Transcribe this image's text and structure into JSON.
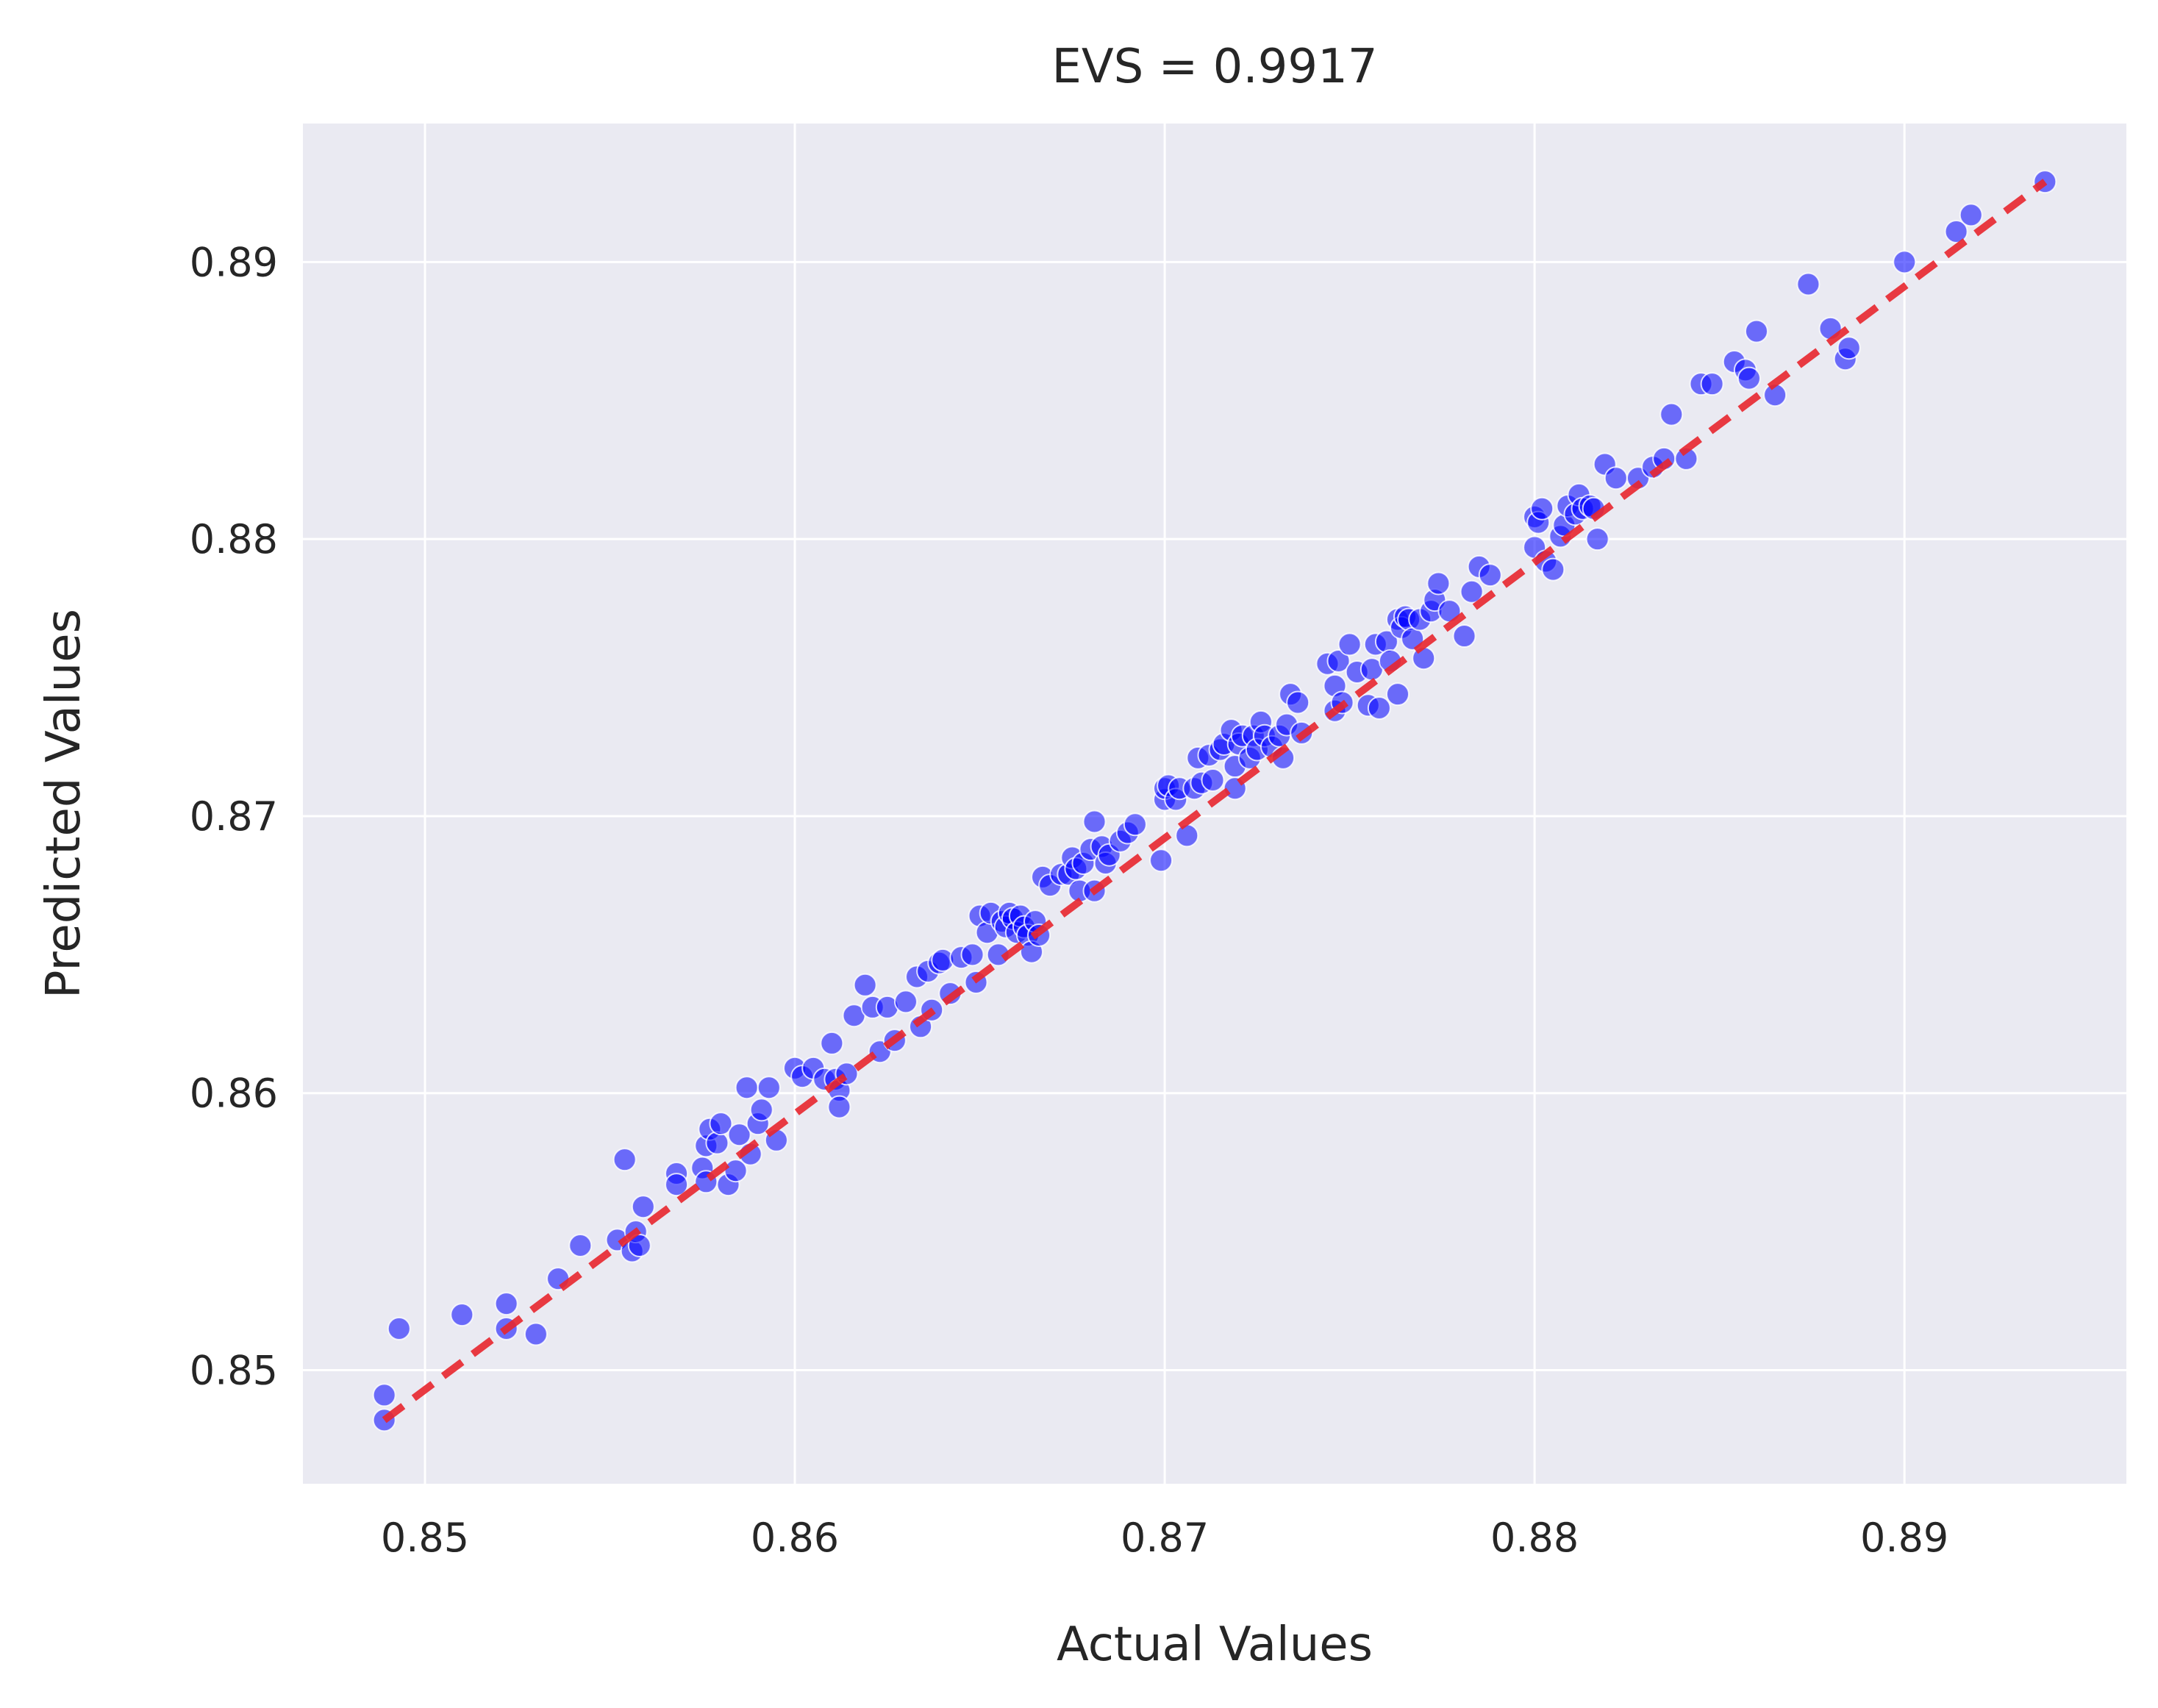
{
  "chart_data": {
    "type": "scatter",
    "title": "EVS = 0.9917",
    "xlabel": "Actual Values",
    "ylabel": "Predicted Values",
    "xlim": [
      0.8467,
      0.896
    ],
    "ylim": [
      0.8459,
      0.895
    ],
    "xticks": [
      0.85,
      0.86,
      0.87,
      0.88,
      0.89
    ],
    "yticks": [
      0.85,
      0.86,
      0.87,
      0.88,
      0.89
    ],
    "xtick_labels": [
      "0.85",
      "0.86",
      "0.87",
      "0.88",
      "0.89"
    ],
    "ytick_labels": [
      "0.85",
      "0.86",
      "0.87",
      "0.88",
      "0.89"
    ],
    "grid": true,
    "legend": "none",
    "colors": {
      "background": "#EAEAF2",
      "grid": "#FFFFFF",
      "points": "#0000FF",
      "reference_line": "#E8262E",
      "text": "#262626"
    },
    "reference_line": {
      "x": [
        0.8489,
        0.8938
      ],
      "y": [
        0.8482,
        0.8929
      ],
      "style": "dashed"
    },
    "series": [
      {
        "points": [
          [
            0.8489,
            0.8482
          ],
          [
            0.8489,
            0.8491
          ],
          [
            0.8493,
            0.8515
          ],
          [
            0.851,
            0.852
          ],
          [
            0.8522,
            0.8524
          ],
          [
            0.8522,
            0.8515
          ],
          [
            0.853,
            0.8513
          ],
          [
            0.8536,
            0.8533
          ],
          [
            0.8542,
            0.8545
          ],
          [
            0.8552,
            0.8547
          ],
          [
            0.8554,
            0.8576
          ],
          [
            0.8556,
            0.8543
          ],
          [
            0.8557,
            0.855
          ],
          [
            0.8558,
            0.8545
          ],
          [
            0.8559,
            0.8559
          ],
          [
            0.8568,
            0.8571
          ],
          [
            0.8568,
            0.8567
          ],
          [
            0.8575,
            0.8573
          ],
          [
            0.8576,
            0.8568
          ],
          [
            0.8576,
            0.8581
          ],
          [
            0.8577,
            0.8587
          ],
          [
            0.8579,
            0.8582
          ],
          [
            0.858,
            0.8589
          ],
          [
            0.8582,
            0.8567
          ],
          [
            0.8584,
            0.8572
          ],
          [
            0.8585,
            0.8585
          ],
          [
            0.8587,
            0.8602
          ],
          [
            0.8588,
            0.8578
          ],
          [
            0.859,
            0.8589
          ],
          [
            0.8591,
            0.8594
          ],
          [
            0.8593,
            0.8602
          ],
          [
            0.8595,
            0.8583
          ],
          [
            0.86,
            0.8609
          ],
          [
            0.8602,
            0.8606
          ],
          [
            0.8605,
            0.8609
          ],
          [
            0.8608,
            0.8605
          ],
          [
            0.861,
            0.8618
          ],
          [
            0.8611,
            0.8605
          ],
          [
            0.8612,
            0.8601
          ],
          [
            0.8612,
            0.8595
          ],
          [
            0.8614,
            0.8607
          ],
          [
            0.8616,
            0.8628
          ],
          [
            0.8619,
            0.8639
          ],
          [
            0.8621,
            0.8631
          ],
          [
            0.8623,
            0.8615
          ],
          [
            0.8625,
            0.8631
          ],
          [
            0.8627,
            0.8619
          ],
          [
            0.863,
            0.8633
          ],
          [
            0.8633,
            0.8642
          ],
          [
            0.8634,
            0.8624
          ],
          [
            0.8636,
            0.8644
          ],
          [
            0.8637,
            0.863
          ],
          [
            0.8639,
            0.8647
          ],
          [
            0.864,
            0.8648
          ],
          [
            0.8642,
            0.8636
          ],
          [
            0.8645,
            0.8649
          ],
          [
            0.8648,
            0.865
          ],
          [
            0.8649,
            0.864
          ],
          [
            0.865,
            0.8664
          ],
          [
            0.8652,
            0.8658
          ],
          [
            0.8653,
            0.8665
          ],
          [
            0.8655,
            0.865
          ],
          [
            0.8656,
            0.8662
          ],
          [
            0.8657,
            0.866
          ],
          [
            0.8658,
            0.8665
          ],
          [
            0.8659,
            0.8663
          ],
          [
            0.866,
            0.8658
          ],
          [
            0.8661,
            0.8664
          ],
          [
            0.8662,
            0.866
          ],
          [
            0.8663,
            0.8657
          ],
          [
            0.8664,
            0.8651
          ],
          [
            0.8665,
            0.8662
          ],
          [
            0.8666,
            0.8657
          ],
          [
            0.8667,
            0.8678
          ],
          [
            0.8669,
            0.8675
          ],
          [
            0.8672,
            0.8679
          ],
          [
            0.8674,
            0.8679
          ],
          [
            0.8675,
            0.8685
          ],
          [
            0.8676,
            0.8681
          ],
          [
            0.8677,
            0.8673
          ],
          [
            0.8678,
            0.8683
          ],
          [
            0.868,
            0.8688
          ],
          [
            0.8681,
            0.8698
          ],
          [
            0.8681,
            0.8673
          ],
          [
            0.8683,
            0.8689
          ],
          [
            0.8684,
            0.8683
          ],
          [
            0.8685,
            0.8686
          ],
          [
            0.8688,
            0.8691
          ],
          [
            0.869,
            0.8694
          ],
          [
            0.8692,
            0.8697
          ],
          [
            0.8699,
            0.8684
          ],
          [
            0.87,
            0.8706
          ],
          [
            0.87,
            0.871
          ],
          [
            0.8701,
            0.8711
          ],
          [
            0.8703,
            0.8706
          ],
          [
            0.8704,
            0.871
          ],
          [
            0.8706,
            0.8693
          ],
          [
            0.8708,
            0.871
          ],
          [
            0.8709,
            0.8721
          ],
          [
            0.871,
            0.8712
          ],
          [
            0.8712,
            0.8722
          ],
          [
            0.8713,
            0.8713
          ],
          [
            0.8715,
            0.8724
          ],
          [
            0.8716,
            0.8726
          ],
          [
            0.8718,
            0.8731
          ],
          [
            0.8719,
            0.8718
          ],
          [
            0.8719,
            0.871
          ],
          [
            0.872,
            0.8726
          ],
          [
            0.8721,
            0.8729
          ],
          [
            0.8723,
            0.8721
          ],
          [
            0.8724,
            0.8729
          ],
          [
            0.8725,
            0.8724
          ],
          [
            0.8726,
            0.8734
          ],
          [
            0.8727,
            0.8729
          ],
          [
            0.8729,
            0.8725
          ],
          [
            0.8731,
            0.8729
          ],
          [
            0.8732,
            0.8721
          ],
          [
            0.8733,
            0.8733
          ],
          [
            0.8734,
            0.8744
          ],
          [
            0.8736,
            0.8741
          ],
          [
            0.8737,
            0.873
          ],
          [
            0.8744,
            0.8755
          ],
          [
            0.8746,
            0.8747
          ],
          [
            0.8746,
            0.8738
          ],
          [
            0.8747,
            0.8756
          ],
          [
            0.8748,
            0.8741
          ],
          [
            0.875,
            0.8762
          ],
          [
            0.8752,
            0.8752
          ],
          [
            0.8755,
            0.874
          ],
          [
            0.8756,
            0.8753
          ],
          [
            0.8757,
            0.8762
          ],
          [
            0.8758,
            0.8739
          ],
          [
            0.876,
            0.8763
          ],
          [
            0.8761,
            0.8756
          ],
          [
            0.8763,
            0.8771
          ],
          [
            0.8763,
            0.8744
          ],
          [
            0.8764,
            0.8768
          ],
          [
            0.8765,
            0.8772
          ],
          [
            0.8766,
            0.8771
          ],
          [
            0.8767,
            0.8764
          ],
          [
            0.8769,
            0.8771
          ],
          [
            0.877,
            0.8757
          ],
          [
            0.8772,
            0.8774
          ],
          [
            0.8773,
            0.8778
          ],
          [
            0.8774,
            0.8784
          ],
          [
            0.8777,
            0.8774
          ],
          [
            0.8781,
            0.8765
          ],
          [
            0.8783,
            0.8781
          ],
          [
            0.8785,
            0.879
          ],
          [
            0.8788,
            0.8787
          ],
          [
            0.88,
            0.8808
          ],
          [
            0.88,
            0.8797
          ],
          [
            0.8801,
            0.8806
          ],
          [
            0.8802,
            0.8811
          ],
          [
            0.8803,
            0.8792
          ],
          [
            0.8805,
            0.8789
          ],
          [
            0.8807,
            0.8801
          ],
          [
            0.8808,
            0.8805
          ],
          [
            0.8809,
            0.8812
          ],
          [
            0.8811,
            0.8809
          ],
          [
            0.8812,
            0.8816
          ],
          [
            0.8813,
            0.8811
          ],
          [
            0.8815,
            0.8812
          ],
          [
            0.8816,
            0.8811
          ],
          [
            0.8817,
            0.88
          ],
          [
            0.8819,
            0.8827
          ],
          [
            0.8822,
            0.8822
          ],
          [
            0.8828,
            0.8822
          ],
          [
            0.8832,
            0.8826
          ],
          [
            0.8835,
            0.8829
          ],
          [
            0.8837,
            0.8845
          ],
          [
            0.8841,
            0.8829
          ],
          [
            0.8845,
            0.8856
          ],
          [
            0.8848,
            0.8856
          ],
          [
            0.8854,
            0.8864
          ],
          [
            0.8857,
            0.8861
          ],
          [
            0.8858,
            0.8858
          ],
          [
            0.886,
            0.8875
          ],
          [
            0.8865,
            0.8852
          ],
          [
            0.8874,
            0.8892
          ],
          [
            0.888,
            0.8876
          ],
          [
            0.8884,
            0.8865
          ],
          [
            0.8885,
            0.8869
          ],
          [
            0.89,
            0.89
          ],
          [
            0.8914,
            0.8911
          ],
          [
            0.8918,
            0.8917
          ],
          [
            0.8938,
            0.8929
          ]
        ]
      }
    ]
  }
}
